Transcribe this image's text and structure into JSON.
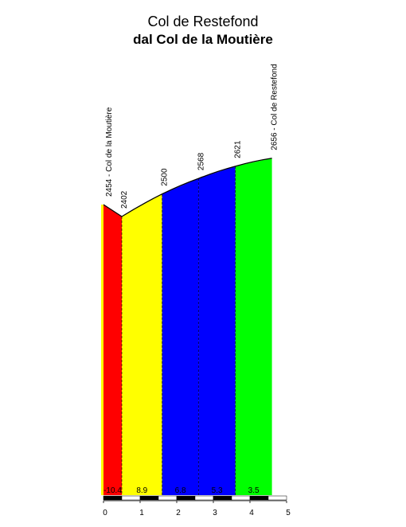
{
  "header": {
    "title": "Col de Restefond",
    "subtitle": "dal Col de la Moutière"
  },
  "chart_data": {
    "type": "area",
    "title": "Col de Restefond",
    "subtitle": "dal Col de la Moutière",
    "xlabel": "",
    "ylabel": "",
    "xlim": [
      0,
      5
    ],
    "x_ticks": [
      "0",
      "1",
      "2",
      "3",
      "4",
      "5"
    ],
    "grid": false,
    "profile": [
      {
        "km": 0.0,
        "altitude": 2454,
        "label": "2454 - Col de la Moutière"
      },
      {
        "km": 0.5,
        "altitude": 2402,
        "label": "2402"
      },
      {
        "km": 1.6,
        "altitude": 2500,
        "label": "2500"
      },
      {
        "km": 2.6,
        "altitude": 2568,
        "label": "2568"
      },
      {
        "km": 3.6,
        "altitude": 2621,
        "label": "2621"
      },
      {
        "km": 4.6,
        "altitude": 2656,
        "label": "2656 - Col de Restefond"
      }
    ],
    "segments": [
      {
        "from_km": 0.0,
        "to_km": 0.5,
        "gradient": "-10.4",
        "color": "#ff0000"
      },
      {
        "from_km": 0.5,
        "to_km": 1.6,
        "gradient": "8.9",
        "color": "#ffff00"
      },
      {
        "from_km": 1.6,
        "to_km": 2.6,
        "gradient": "6.8",
        "color": "#0000ff"
      },
      {
        "from_km": 2.6,
        "to_km": 3.6,
        "gradient": "5.3",
        "color": "#0000ff"
      },
      {
        "from_km": 3.6,
        "to_km": 4.6,
        "gradient": "3.5",
        "color": "#00ff00"
      }
    ]
  }
}
